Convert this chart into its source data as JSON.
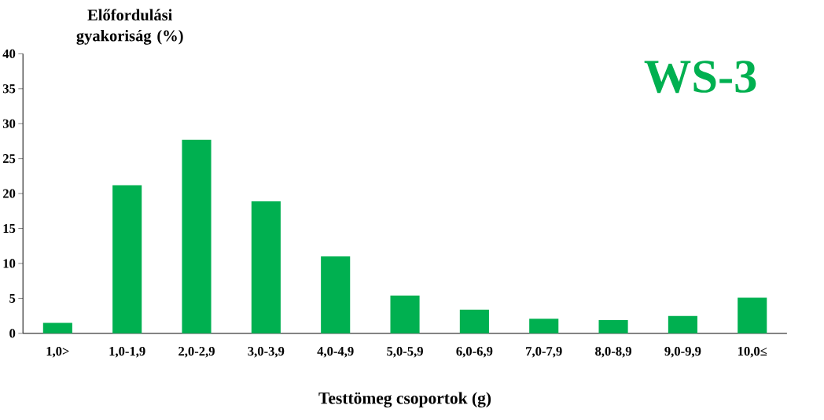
{
  "chart_data": {
    "type": "bar",
    "categories": [
      "1,0>",
      "1,0-1,9",
      "2,0-2,9",
      "3,0-3,9",
      "4,0-4,9",
      "5,0-5,9",
      "6,0-6,9",
      "7,0-7,9",
      "8,0-8,9",
      "9,0-9,9",
      "10,0≤"
    ],
    "values": [
      1.5,
      21.2,
      27.7,
      18.9,
      11.0,
      5.4,
      3.4,
      2.1,
      1.9,
      2.5,
      5.1
    ],
    "color": "#00b050",
    "ylim": [
      0,
      40
    ],
    "yticks": [
      0,
      5,
      10,
      15,
      20,
      25,
      30,
      35,
      40
    ],
    "xlabel": "Testtömeg csoportok (g)",
    "ylabel": "Előfordulási gyakoriság (%)",
    "annotations": [
      "WS-3"
    ]
  }
}
